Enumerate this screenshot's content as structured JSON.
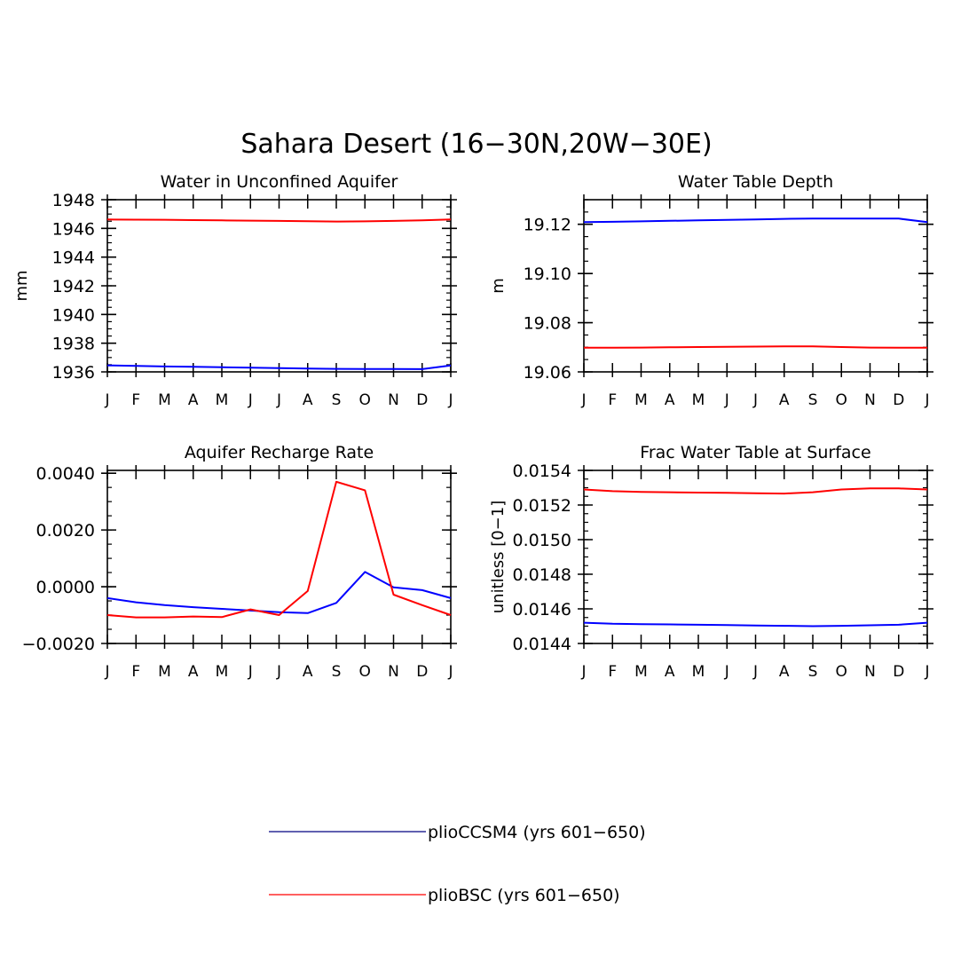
{
  "figure": {
    "title": "Sahara Desert (16−30N,20W−30E)"
  },
  "legend": {
    "entries": [
      {
        "label": "plioCCSM4 (yrs 601−650)",
        "color": "#0000ff"
      },
      {
        "label": "plioBSC (yrs 601−650)",
        "color": "#ff0000"
      }
    ]
  },
  "chart_data": [
    {
      "type": "line",
      "title": "Water in Unconfined Aquifer",
      "ylabel": "mm",
      "xlabel": "",
      "categories": [
        "J",
        "F",
        "M",
        "A",
        "M",
        "J",
        "J",
        "A",
        "S",
        "O",
        "N",
        "D",
        "J"
      ],
      "ylim": [
        1936,
        1948
      ],
      "yticks": [
        1936,
        1938,
        1940,
        1942,
        1944,
        1946,
        1948
      ],
      "ytick_labels": [
        "1936",
        "1938",
        "1940",
        "1942",
        "1944",
        "1946",
        "1948"
      ],
      "yminor_step": 0.5,
      "series": [
        {
          "name": "plioCCSM4 (yrs 601−650)",
          "color": "#0000ff",
          "values": [
            1936.45,
            1936.42,
            1936.38,
            1936.35,
            1936.32,
            1936.29,
            1936.26,
            1936.23,
            1936.21,
            1936.2,
            1936.2,
            1936.19,
            1936.45
          ]
        },
        {
          "name": "plioBSC (yrs 601−650)",
          "color": "#ff0000",
          "values": [
            1946.62,
            1946.61,
            1946.6,
            1946.58,
            1946.56,
            1946.54,
            1946.52,
            1946.5,
            1946.48,
            1946.49,
            1946.52,
            1946.56,
            1946.62
          ]
        }
      ]
    },
    {
      "type": "line",
      "title": "Water Table Depth",
      "ylabel": "m",
      "xlabel": "",
      "categories": [
        "J",
        "F",
        "M",
        "A",
        "M",
        "J",
        "J",
        "A",
        "S",
        "O",
        "N",
        "D",
        "J"
      ],
      "ylim": [
        19.06,
        19.13
      ],
      "yticks": [
        19.06,
        19.08,
        19.1,
        19.12
      ],
      "ytick_labels": [
        "19.06",
        "19.08",
        "19.10",
        "19.12"
      ],
      "yminor_step": 0.005,
      "series": [
        {
          "name": "plioCCSM4 (yrs 601−650)",
          "color": "#0000ff",
          "values": [
            19.1209,
            19.121,
            19.1212,
            19.1214,
            19.1216,
            19.1218,
            19.122,
            19.1222,
            19.1223,
            19.1223,
            19.1223,
            19.1223,
            19.1209
          ]
        },
        {
          "name": "plioBSC (yrs 601−650)",
          "color": "#ff0000",
          "values": [
            19.0698,
            19.0698,
            19.0699,
            19.07,
            19.0701,
            19.0702,
            19.0703,
            19.0704,
            19.0704,
            19.0701,
            19.0699,
            19.0698,
            19.0698
          ]
        }
      ]
    },
    {
      "type": "line",
      "title": "Aquifer Recharge Rate",
      "ylabel": "",
      "xlabel": "",
      "categories": [
        "J",
        "F",
        "M",
        "A",
        "M",
        "J",
        "J",
        "A",
        "S",
        "O",
        "N",
        "D",
        "J"
      ],
      "ylim": [
        -0.002,
        0.0041
      ],
      "yticks": [
        -0.002,
        0.0,
        0.002,
        0.004
      ],
      "ytick_labels": [
        "−0.0020",
        "0.0000",
        "0.0020",
        "0.0040"
      ],
      "yminor_step": 0.0005,
      "series": [
        {
          "name": "plioCCSM4 (yrs 601−650)",
          "color": "#0000ff",
          "values": [
            -0.0004,
            -0.00055,
            -0.00065,
            -0.00072,
            -0.00078,
            -0.00084,
            -0.0009,
            -0.00093,
            -0.00057,
            0.00052,
            -2e-05,
            -0.00012,
            -0.0004
          ]
        },
        {
          "name": "plioBSC (yrs 601−650)",
          "color": "#ff0000",
          "values": [
            -0.001,
            -0.00108,
            -0.00108,
            -0.00105,
            -0.00107,
            -0.0008,
            -0.001,
            -0.00015,
            0.0037,
            0.0034,
            -0.00028,
            -0.00065,
            -0.001
          ]
        }
      ]
    },
    {
      "type": "line",
      "title": "Frac Water Table at Surface",
      "ylabel": "unitless [0−1]",
      "xlabel": "",
      "categories": [
        "J",
        "F",
        "M",
        "A",
        "M",
        "J",
        "J",
        "A",
        "S",
        "O",
        "N",
        "D",
        "J"
      ],
      "ylim": [
        0.0144,
        0.0154
      ],
      "yticks": [
        0.0144,
        0.0146,
        0.0148,
        0.015,
        0.0152,
        0.0154
      ],
      "ytick_labels": [
        "0.0144",
        "0.0146",
        "0.0148",
        "0.0150",
        "0.0152",
        "0.0154"
      ],
      "yminor_step": 5e-05,
      "series": [
        {
          "name": "plioCCSM4 (yrs 601−650)",
          "color": "#0000ff",
          "values": [
            0.01452,
            0.014514,
            0.014512,
            0.01451,
            0.014508,
            0.014506,
            0.014504,
            0.014502,
            0.0145,
            0.014502,
            0.014505,
            0.014508,
            0.01452
          ]
        },
        {
          "name": "plioBSC (yrs 601−650)",
          "color": "#ff0000",
          "values": [
            0.01529,
            0.01528,
            0.015276,
            0.015274,
            0.015272,
            0.01527,
            0.015268,
            0.015266,
            0.015274,
            0.01529,
            0.015296,
            0.015296,
            0.01529
          ]
        }
      ]
    }
  ]
}
